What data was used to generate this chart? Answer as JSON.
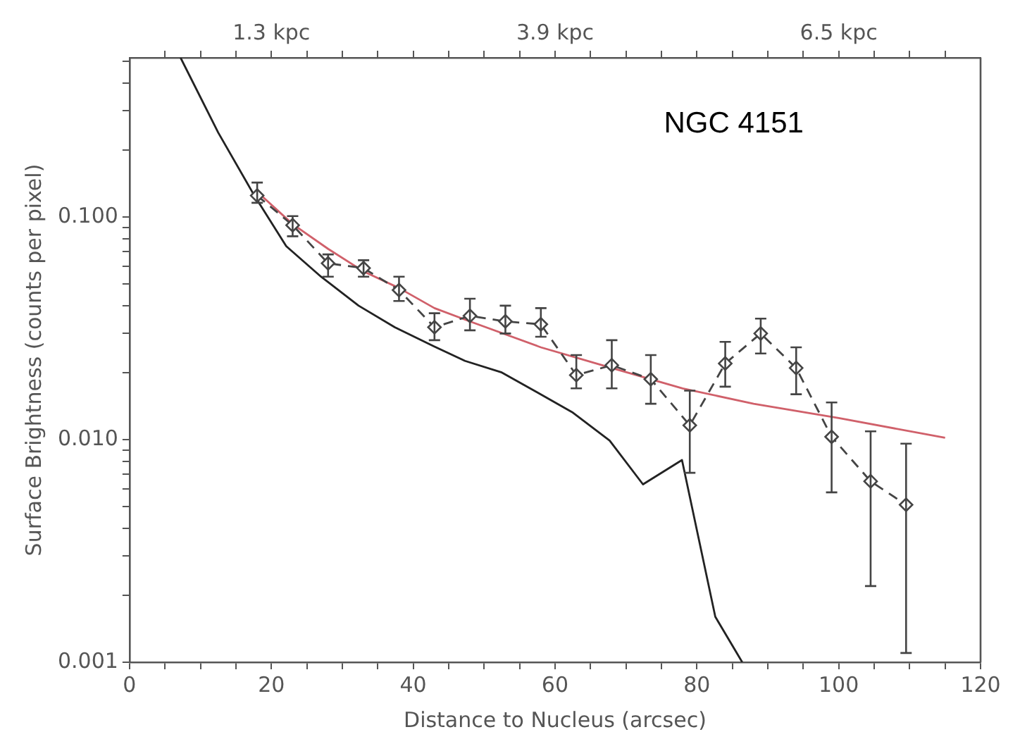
{
  "chart_data": {
    "type": "line",
    "annotations": [
      "NGC 4151"
    ],
    "xlabel": "Distance to Nucleus (arcsec)",
    "ylabel": "Surface Brightness (counts per pixel)",
    "log": "y",
    "grid": false,
    "legend": false,
    "xlim": [
      0,
      120
    ],
    "xticks": [
      0,
      {
        "value": 5,
        "label": null
      },
      {
        "value": 10,
        "label": null
      },
      {
        "value": 15,
        "label": null
      },
      20,
      {
        "value": 25,
        "label": null
      },
      {
        "value": 30,
        "label": null
      },
      {
        "value": 35,
        "label": null
      },
      40,
      {
        "value": 45,
        "label": null
      },
      {
        "value": 50,
        "label": null
      },
      {
        "value": 55,
        "label": null
      },
      60,
      {
        "value": 65,
        "label": null
      },
      {
        "value": 70,
        "label": null
      },
      {
        "value": 75,
        "label": null
      },
      80,
      {
        "value": 85,
        "label": null
      },
      {
        "value": 90,
        "label": null
      },
      {
        "value": 95,
        "label": null
      },
      100,
      {
        "value": 105,
        "label": null
      },
      {
        "value": 110,
        "label": null
      },
      {
        "value": 115,
        "label": null
      },
      120
    ],
    "x2lim": [
      0,
      7.8
    ],
    "x2label": null,
    "x2ticks": [
      {
        "value": 0.325,
        "label": null
      },
      {
        "value": 0.65,
        "label": null
      },
      {
        "value": 0.975,
        "label": null
      },
      {
        "value": 1.3,
        "label": "1.3 kpc"
      },
      {
        "value": 1.625,
        "label": null
      },
      {
        "value": 1.95,
        "label": null
      },
      {
        "value": 2.275,
        "label": null
      },
      {
        "value": 2.6,
        "label": null
      },
      {
        "value": 2.925,
        "label": null
      },
      {
        "value": 3.25,
        "label": null
      },
      {
        "value": 3.575,
        "label": null
      },
      {
        "value": 3.9,
        "label": "3.9 kpc"
      },
      {
        "value": 4.225,
        "label": null
      },
      {
        "value": 4.55,
        "label": null
      },
      {
        "value": 4.875,
        "label": null
      },
      {
        "value": 5.2,
        "label": null
      },
      {
        "value": 5.525,
        "label": null
      },
      {
        "value": 5.85,
        "label": null
      },
      {
        "value": 6.175,
        "label": null
      },
      {
        "value": 6.5,
        "label": "6.5 kpc"
      },
      {
        "value": 6.825,
        "label": null
      },
      {
        "value": 7.15,
        "label": null
      },
      {
        "value": 7.475,
        "label": null
      }
    ],
    "ylim": [
      0.001,
      0.52
    ],
    "yticks": [
      0.001,
      {
        "value": 0.002,
        "label": null
      },
      {
        "value": 0.003,
        "label": null
      },
      {
        "value": 0.004,
        "label": null
      },
      {
        "value": 0.005,
        "label": null
      },
      {
        "value": 0.006,
        "label": null
      },
      {
        "value": 0.007,
        "label": null
      },
      {
        "value": 0.008,
        "label": null
      },
      {
        "value": 0.009,
        "label": null
      },
      {
        "value": 0.01,
        "label": "0.010"
      },
      {
        "value": 0.02,
        "label": null
      },
      {
        "value": 0.03,
        "label": null
      },
      {
        "value": 0.04,
        "label": null
      },
      {
        "value": 0.05,
        "label": null
      },
      {
        "value": 0.06,
        "label": null
      },
      {
        "value": 0.07,
        "label": null
      },
      {
        "value": 0.08,
        "label": null
      },
      {
        "value": 0.09,
        "label": null
      },
      {
        "value": 0.1,
        "label": "0.100"
      },
      {
        "value": 0.2,
        "label": null
      },
      {
        "value": 0.3,
        "label": null
      },
      {
        "value": 0.4,
        "label": null
      },
      {
        "value": 0.5,
        "label": null
      }
    ],
    "series": [
      {
        "color": "#444444",
        "line_style": "dashed",
        "marker": "diamond",
        "x": [
          18,
          23,
          28,
          33,
          38,
          43,
          48,
          53,
          58,
          63,
          68,
          73.5,
          79,
          84,
          89,
          94,
          99,
          104.5,
          109.5
        ],
        "values": [
          0.125,
          0.092,
          0.062,
          0.059,
          0.047,
          0.032,
          0.036,
          0.034,
          0.033,
          0.0195,
          0.0216,
          0.0187,
          0.0116,
          0.022,
          0.03,
          0.021,
          0.0103,
          0.0065,
          0.0051
        ],
        "errors": [
          [
            0.116,
            0.143
          ],
          [
            0.082,
            0.101
          ],
          [
            0.054,
            0.068
          ],
          [
            0.054,
            0.064
          ],
          [
            0.042,
            0.054
          ],
          [
            0.028,
            0.037
          ],
          [
            0.031,
            0.043
          ],
          [
            0.03,
            0.04
          ],
          [
            0.029,
            0.039
          ],
          [
            0.017,
            0.024
          ],
          [
            0.017,
            0.028
          ],
          [
            0.0145,
            0.024
          ],
          [
            0.0071,
            0.0166
          ],
          [
            0.0173,
            0.0275
          ],
          [
            0.0244,
            0.035
          ],
          [
            0.016,
            0.026
          ],
          [
            0.0058,
            0.0147
          ],
          [
            0.0022,
            0.0109
          ],
          [
            0.0011,
            0.0096
          ]
        ]
      },
      {
        "color": "#222222",
        "line_style": "solid",
        "marker": "none",
        "x": [
          7.2,
          12.5,
          17.6,
          22.1,
          27,
          32.3,
          37.4,
          42.9,
          47.3,
          52.4,
          57.5,
          62.4,
          67.7,
          72.4,
          77.9,
          82.6,
          86.4
        ],
        "values": [
          0.52,
          0.24,
          0.125,
          0.074,
          0.054,
          0.04,
          0.032,
          0.0263,
          0.0226,
          0.0201,
          0.0163,
          0.0133,
          0.0099,
          0.0063,
          0.0081,
          0.0016,
          0.001
        ]
      },
      {
        "color": "#d0606a",
        "line_style": "solid",
        "marker": "none",
        "x": [
          18,
          23,
          28,
          33,
          38,
          43,
          48,
          58,
          68,
          78,
          88,
          100,
          115
        ],
        "values": [
          0.13,
          0.093,
          0.072,
          0.057,
          0.048,
          0.039,
          0.034,
          0.026,
          0.021,
          0.017,
          0.0145,
          0.0125,
          0.0102
        ]
      }
    ]
  }
}
